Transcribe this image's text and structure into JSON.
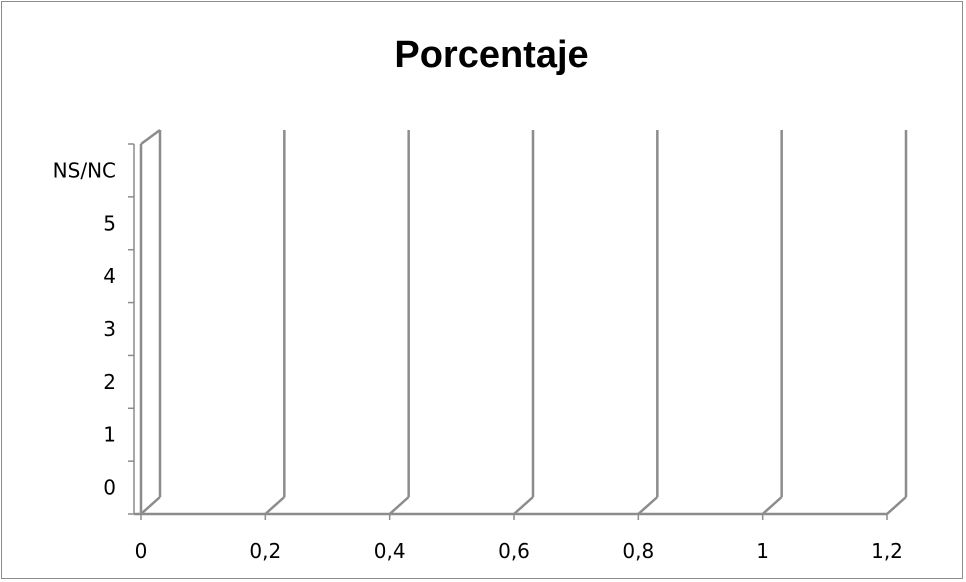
{
  "chart_data": {
    "type": "bar",
    "title": "Porcentaje",
    "orientation": "horizontal",
    "categories": [
      "0",
      "1",
      "2",
      "3",
      "4",
      "5",
      "NS/NC"
    ],
    "series": [
      {
        "values": [
          0,
          0,
          0,
          0,
          0,
          0,
          0
        ]
      }
    ],
    "xlim": [
      0,
      1.2
    ],
    "x_ticks": [
      "0",
      "0,2",
      "0,4",
      "0,6",
      "0,8",
      "1",
      "1,2"
    ],
    "grid": true,
    "three_d": true,
    "colors": {
      "gridline": "#8c8c8c",
      "wall": "#8c8c8c"
    }
  }
}
